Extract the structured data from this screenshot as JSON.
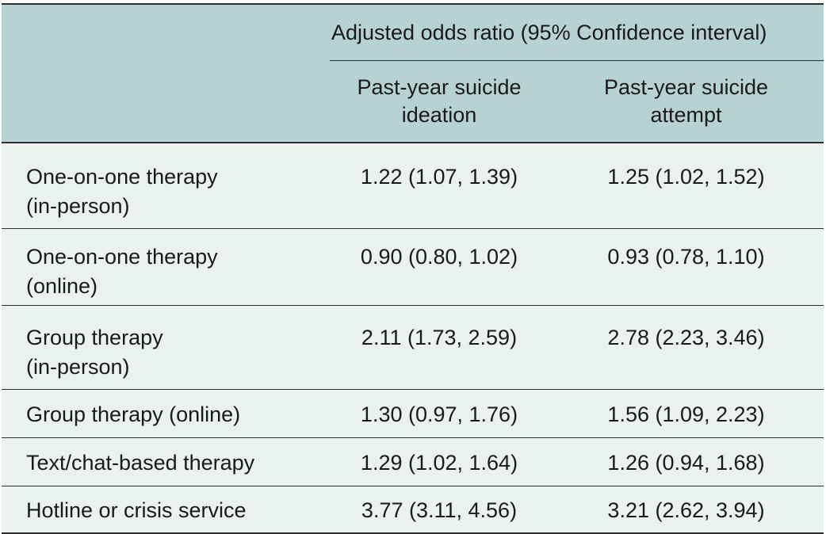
{
  "table": {
    "header_group": "Adjusted odds ratio (95% Confidence interval)",
    "columns": [
      "",
      "Past-year suicide\nideation",
      "Past-year suicide\nattempt"
    ],
    "rows": [
      {
        "label": "One-on-one therapy\n(in-person)",
        "ideation": "1.22 (1.07, 1.39)",
        "attempt": "1.25 (1.02, 1.52)"
      },
      {
        "label": "One-on-one therapy\n(online)",
        "ideation": "0.90 (0.80, 1.02)",
        "attempt": "0.93 (0.78, 1.10)"
      },
      {
        "label": "Group therapy\n(in-person)",
        "ideation": "2.11 (1.73, 2.59)",
        "attempt": "2.78 (2.23, 3.46)"
      },
      {
        "label": "Group therapy (online)",
        "ideation": "1.30 (0.97, 1.76)",
        "attempt": "1.56 (1.09, 2.23)"
      },
      {
        "label": "Text/chat-based therapy",
        "ideation": "1.29 (1.02, 1.64)",
        "attempt": "1.26 (0.94, 1.68)"
      },
      {
        "label": "Hotline or crisis service",
        "ideation": "3.77 (3.11, 4.56)",
        "attempt": "3.21 (2.62, 3.94)"
      }
    ]
  },
  "colors": {
    "header_bg": "#b7d2d3",
    "body_bg": "#e9f1f1",
    "rule": "#2d2d2d"
  }
}
